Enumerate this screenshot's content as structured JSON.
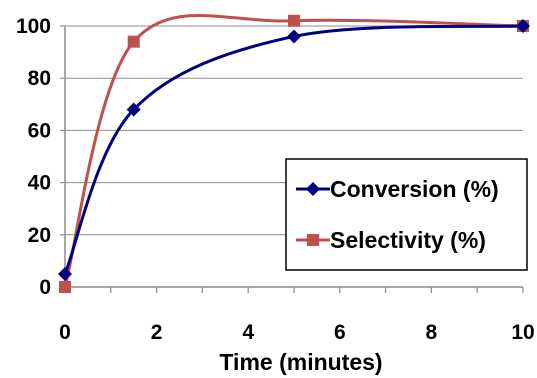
{
  "chart_data": {
    "type": "line",
    "title": "",
    "xlabel": "Time (minutes)",
    "ylabel": "",
    "xlim": [
      0,
      10
    ],
    "ylim": [
      0,
      100
    ],
    "x_ticks": [
      "0",
      "2",
      "4",
      "6",
      "8",
      "10"
    ],
    "y_ticks": [
      "0",
      "20",
      "40",
      "60",
      "80",
      "100"
    ],
    "grid": "horizontal",
    "legend_position": "right",
    "smoothed": true,
    "series": [
      {
        "name": "Conversion (%)",
        "color": "#000080",
        "marker": "diamond",
        "points": [
          [
            0,
            5
          ],
          [
            1.5,
            68
          ],
          [
            5,
            96
          ],
          [
            10,
            100
          ]
        ]
      },
      {
        "name": "Selectivity (%)",
        "color": "#C0504D",
        "marker": "square",
        "points": [
          [
            0,
            0
          ],
          [
            1.5,
            94
          ],
          [
            5,
            102
          ],
          [
            10,
            100
          ]
        ]
      }
    ]
  }
}
